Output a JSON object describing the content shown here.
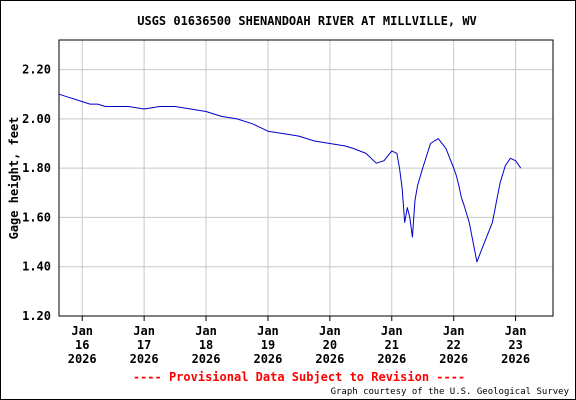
{
  "chart_data": {
    "type": "line",
    "title": "USGS 01636500 SHENANDOAH RIVER AT MILLVILLE, WV",
    "ylabel": "Gage height, feet",
    "xlabel": "",
    "ylim": [
      1.2,
      2.32
    ],
    "yticks": [
      "1.20",
      "1.40",
      "1.60",
      "1.80",
      "2.00",
      "2.20"
    ],
    "xticks": [
      {
        "line1": "Jan",
        "line2": "16",
        "line3": "2026"
      },
      {
        "line1": "Jan",
        "line2": "17",
        "line3": "2026"
      },
      {
        "line1": "Jan",
        "line2": "18",
        "line3": "2026"
      },
      {
        "line1": "Jan",
        "line2": "19",
        "line3": "2026"
      },
      {
        "line1": "Jan",
        "line2": "20",
        "line3": "2026"
      },
      {
        "line1": "Jan",
        "line2": "21",
        "line3": "2026"
      },
      {
        "line1": "Jan",
        "line2": "22",
        "line3": "2026"
      },
      {
        "line1": "Jan",
        "line2": "23",
        "line3": "2026"
      }
    ],
    "x_range": [
      "2026-01-15T15:00",
      "2026-01-23T14:30"
    ],
    "grid": true,
    "series": [
      {
        "color": "#0000cc",
        "x": [
          "2026-01-15 15:00",
          "2026-01-15 18:00",
          "2026-01-15 21:00",
          "2026-01-16 00:00",
          "2026-01-16 03:00",
          "2026-01-16 06:00",
          "2026-01-16 09:00",
          "2026-01-16 12:00",
          "2026-01-16 18:00",
          "2026-01-17 00:00",
          "2026-01-17 06:00",
          "2026-01-17 12:00",
          "2026-01-17 18:00",
          "2026-01-18 00:00",
          "2026-01-18 06:00",
          "2026-01-18 12:00",
          "2026-01-18 18:00",
          "2026-01-19 00:00",
          "2026-01-19 06:00",
          "2026-01-19 12:00",
          "2026-01-19 18:00",
          "2026-01-20 00:00",
          "2026-01-20 06:00",
          "2026-01-20 09:00",
          "2026-01-20 14:00",
          "2026-01-20 18:00",
          "2026-01-20 21:00",
          "2026-01-21 00:00",
          "2026-01-21 02:00",
          "2026-01-21 03:00",
          "2026-01-21 04:00",
          "2026-01-21 05:00",
          "2026-01-21 06:00",
          "2026-01-21 07:00",
          "2026-01-21 08:00",
          "2026-01-21 09:00",
          "2026-01-21 10:00",
          "2026-01-21 12:00",
          "2026-01-21 15:00",
          "2026-01-21 18:00",
          "2026-01-21 21:00",
          "2026-01-22 00:00",
          "2026-01-22 01:00",
          "2026-01-22 02:00",
          "2026-01-22 03:00",
          "2026-01-22 04:00",
          "2026-01-22 06:00",
          "2026-01-22 09:00",
          "2026-01-22 12:00",
          "2026-01-22 15:00",
          "2026-01-22 18:00",
          "2026-01-22 20:00",
          "2026-01-22 22:00",
          "2026-01-23 00:00",
          "2026-01-23 02:00"
        ],
        "y": [
          2.1,
          2.09,
          2.08,
          2.07,
          2.06,
          2.06,
          2.05,
          2.05,
          2.05,
          2.04,
          2.05,
          2.05,
          2.04,
          2.03,
          2.01,
          2.0,
          1.98,
          1.95,
          1.94,
          1.93,
          1.91,
          1.9,
          1.89,
          1.88,
          1.86,
          1.82,
          1.83,
          1.87,
          1.86,
          1.8,
          1.72,
          1.58,
          1.64,
          1.6,
          1.52,
          1.67,
          1.73,
          1.8,
          1.9,
          1.92,
          1.88,
          1.8,
          1.77,
          1.73,
          1.68,
          1.65,
          1.58,
          1.42,
          1.5,
          1.58,
          1.74,
          1.81,
          1.84,
          1.83,
          1.8
        ]
      }
    ]
  },
  "footer": {
    "provisional": "---- Provisional Data Subject to Revision ----",
    "credit": "Graph courtesy of the U.S. Geological Survey"
  }
}
